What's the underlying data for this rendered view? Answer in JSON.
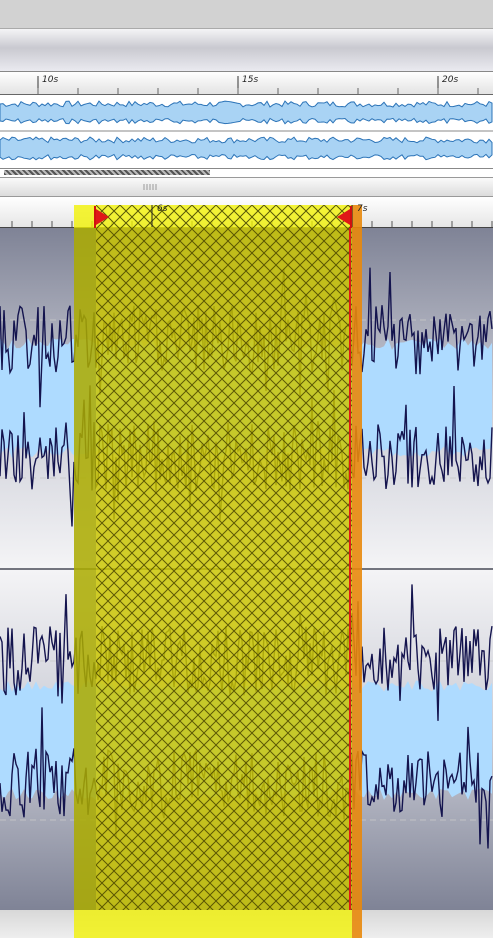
{
  "app": {
    "view": "audio-editor-waveform"
  },
  "overview_ruler": {
    "ticks": [
      {
        "label": "10s"
      },
      {
        "label": "15s"
      },
      {
        "label": "20s"
      }
    ]
  },
  "detail_ruler": {
    "ticks": [
      {
        "label": "6s"
      },
      {
        "label": "7s"
      }
    ]
  },
  "selection": {
    "start_label": "6s",
    "end_label": "7s",
    "state": "selected"
  },
  "tracks": [
    {
      "name": "channel-left"
    },
    {
      "name": "channel-right"
    }
  ],
  "icons": {
    "scroll_grip": "grip-lines-icon",
    "start_marker": "selection-start-flag-icon",
    "end_marker": "selection-end-flag-icon"
  },
  "colors": {
    "wave_overview_fill": "#a9d3f4",
    "wave_overview_line": "#2b73b7",
    "wave_detail_fill": "#aedbff",
    "wave_detail_line": "#14144e",
    "selection_yellow": "#f2f200",
    "selection_dim": "#7a7a14",
    "marker_red": "#e01818",
    "track_grey": "#8f93a6"
  }
}
